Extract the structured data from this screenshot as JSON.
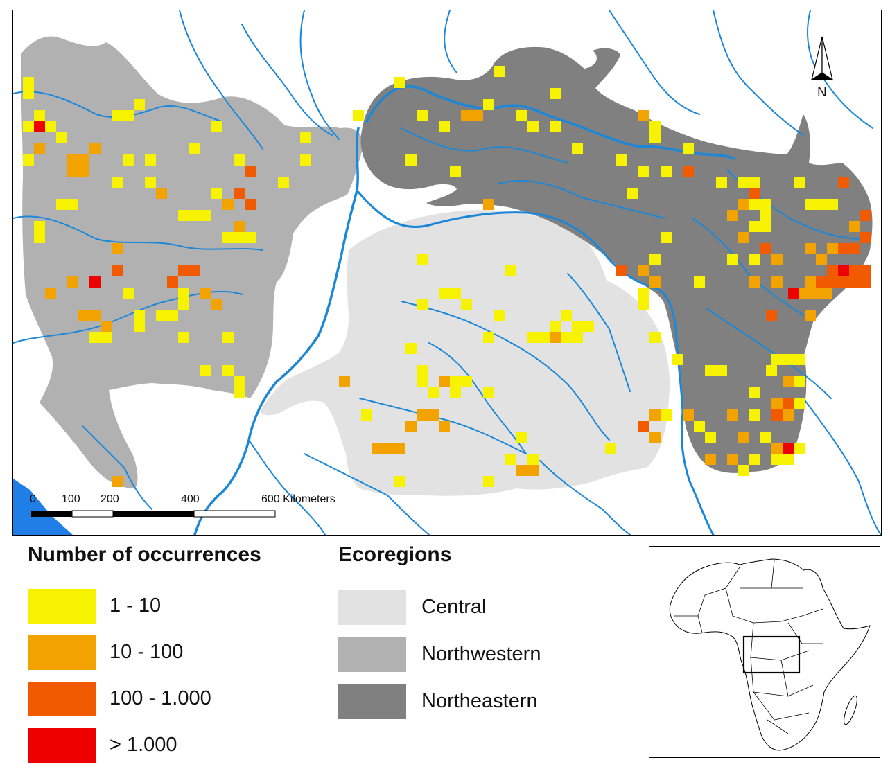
{
  "colors": {
    "river": "#1b87d8",
    "ocean": "#1f7fe6",
    "class_1_10": "#f7f200",
    "class_10_100": "#f3a300",
    "class_100_1000": "#f25a00",
    "class_gt_1000": "#ee0000",
    "central": "#e2e2e2",
    "northwestern": "#b1b1b1",
    "northeastern": "#808080"
  },
  "scale_bar": {
    "ticks": [
      "0",
      "100",
      "200",
      "400",
      "600 Kilometers"
    ]
  },
  "north_arrow": {
    "label": "N"
  },
  "occurrence_legend": {
    "title": "Number of occurrences",
    "classes": [
      {
        "label": "1 - 10",
        "color": "#f7f200"
      },
      {
        "label": "10 - 100",
        "color": "#f3a300"
      },
      {
        "label": "100 - 1.000",
        "color": "#f25a00"
      },
      {
        "label": "> 1.000",
        "color": "#ee0000"
      }
    ]
  },
  "ecoregion_legend": {
    "title": "Ecoregions",
    "regions": [
      {
        "label": "Central",
        "color": "#e2e2e2"
      },
      {
        "label": "Northwestern",
        "color": "#b1b1b1"
      },
      {
        "label": "Northeastern",
        "color": "#808080"
      }
    ]
  },
  "inset": {
    "icon": "africa-locator-map"
  }
}
